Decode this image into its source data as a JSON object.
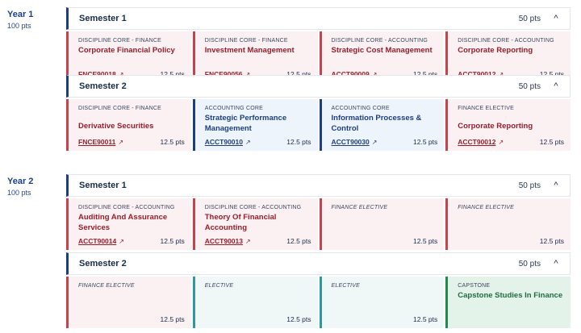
{
  "years": [
    {
      "title": "Year 1",
      "pts": "100 pts"
    },
    {
      "title": "Year 2",
      "pts": "100 pts"
    }
  ],
  "semesters": [
    {
      "title": "Semester 1",
      "pts": "50 pts",
      "chevron": "^",
      "cards": [
        {
          "category": "DISCIPLINE CORE - FINANCE",
          "name": "Corporate Financial Policy",
          "code": "FNCE90018",
          "pts": "12.5 pts",
          "color": "#c9414d"
        },
        {
          "category": "DISCIPLINE CORE - FINANCE",
          "name": "Investment Management",
          "code": "FNCE90056",
          "pts": "12.5 pts",
          "color": "#c9414d"
        },
        {
          "category": "DISCIPLINE CORE - ACCOUNTING",
          "name": "Strategic Cost Management",
          "code": "ACCT90009",
          "pts": "12.5 pts",
          "color": "#c9414d"
        },
        {
          "category": "DISCIPLINE CORE - ACCOUNTING",
          "name": "Corporate Reporting",
          "code": "ACCT90012",
          "pts": "12.5 pts",
          "color": "#c9414d"
        }
      ]
    },
    {
      "title": "Semester 2",
      "pts": "50 pts",
      "chevron": "^",
      "cards": [
        {
          "category": "DISCIPLINE CORE - FINANCE",
          "name": "Derivative Securities",
          "code": "FNCE90011",
          "pts": "12.5 pts",
          "color": "#c9414d"
        },
        {
          "category": "ACCOUNTING CORE",
          "name": "Strategic Performance Management",
          "code": "ACCT90010",
          "pts": "12.5 pts",
          "color": "#1d3f82"
        },
        {
          "category": "ACCOUNTING CORE",
          "name": "Information Processes & Control",
          "code": "ACCT90030",
          "pts": "12.5 pts",
          "color": "#1d3f82"
        },
        {
          "category": "FINANCE ELECTIVE",
          "name": "Corporate Reporting",
          "code": "ACCT90012",
          "pts": "12.5 pts",
          "color": "#c9414d"
        }
      ]
    },
    {
      "title": "Semester 1",
      "pts": "50 pts",
      "chevron": "^",
      "cards": [
        {
          "category": "DISCIPLINE CORE - ACCOUNTING",
          "name": "Auditing And Assurance Services",
          "code": "ACCT90014",
          "pts": "12.5 pts",
          "color": "#c9414d"
        },
        {
          "category": "DISCIPLINE CORE - ACCOUNTING",
          "name": "Theory Of Financial Accounting",
          "code": "ACCT90013",
          "pts": "12.5 pts",
          "color": "#c9414d"
        },
        {
          "category": "FINANCE ELECTIVE",
          "name": "",
          "code": "",
          "pts": "12.5 pts",
          "color": "#c9414d"
        },
        {
          "category": "FINANCE ELECTIVE",
          "name": "",
          "code": "",
          "pts": "12.5 pts",
          "color": "#c9414d"
        }
      ]
    },
    {
      "title": "Semester 2",
      "pts": "50 pts",
      "chevron": "^",
      "cards": [
        {
          "category": "FINANCE ELECTIVE",
          "name": "",
          "code": "",
          "pts": "12.5 pts",
          "color": "#c9414d"
        },
        {
          "category": "ELECTIVE",
          "name": "",
          "code": "",
          "pts": "12.5 pts",
          "color": "#2d9b9b"
        },
        {
          "category": "ELECTIVE",
          "name": "",
          "code": "",
          "pts": "12.5 pts",
          "color": "#2d9b9b"
        },
        {
          "category": "CAPSTONE",
          "name": "Capstone Studies In Finance",
          "code": "",
          "pts": "",
          "color": "#1f8a4f"
        }
      ]
    }
  ]
}
